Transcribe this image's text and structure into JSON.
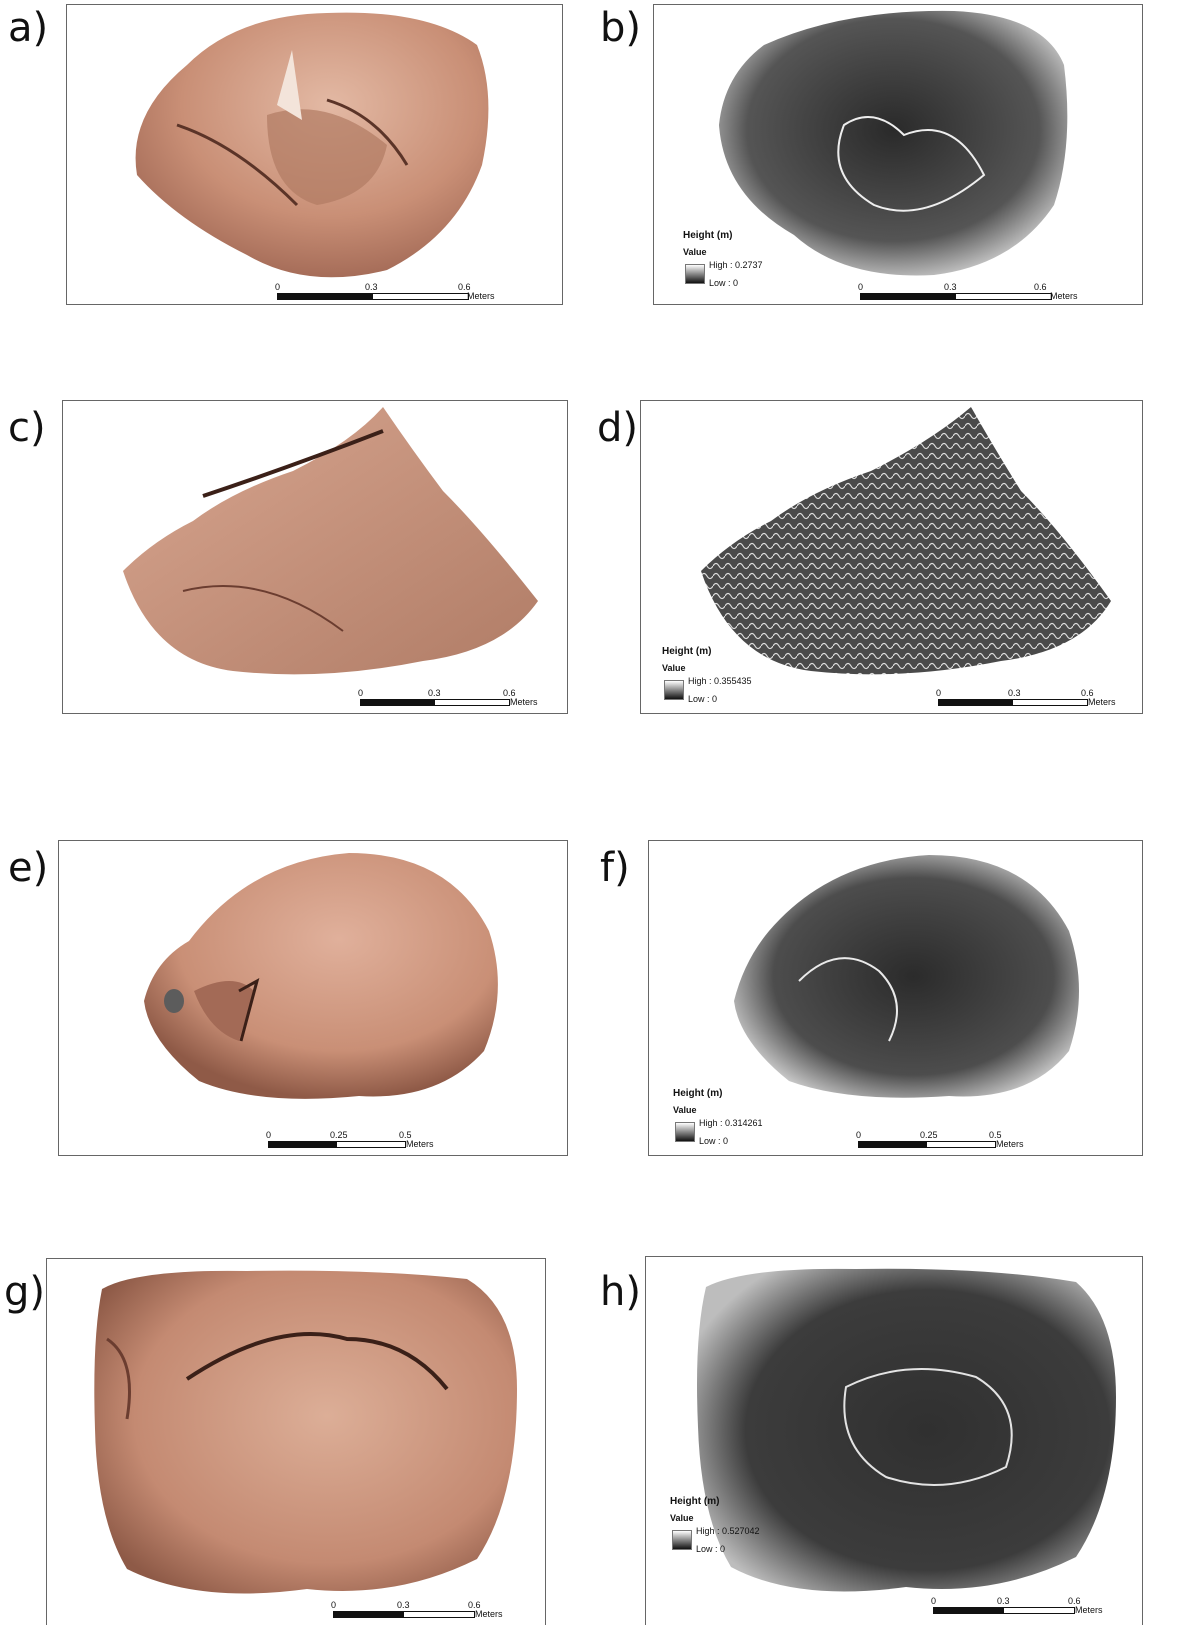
{
  "panels": [
    {
      "label": "a)",
      "type": "photo",
      "scale": {
        "ticks": [
          "0",
          "0.3",
          "0.6"
        ],
        "unit": "Meters"
      }
    },
    {
      "label": "b)",
      "type": "height",
      "legend": {
        "title": "Height (m)",
        "value": "Value",
        "high": "High : 0.2737",
        "low": "Low : 0"
      },
      "scale": {
        "ticks": [
          "0",
          "0.3",
          "0.6"
        ],
        "unit": "Meters"
      }
    },
    {
      "label": "c)",
      "type": "photo",
      "scale": {
        "ticks": [
          "0",
          "0.3",
          "0.6"
        ],
        "unit": "Meters"
      }
    },
    {
      "label": "d)",
      "type": "height",
      "legend": {
        "title": "Height (m)",
        "value": "Value",
        "high": "High : 0.355435",
        "low": "Low : 0"
      },
      "scale": {
        "ticks": [
          "0",
          "0.3",
          "0.6"
        ],
        "unit": "Meters"
      }
    },
    {
      "label": "e)",
      "type": "photo",
      "scale": {
        "ticks": [
          "0",
          "0.25",
          "0.5"
        ],
        "unit": "Meters"
      }
    },
    {
      "label": "f)",
      "type": "height",
      "legend": {
        "title": "Height (m)",
        "value": "Value",
        "high": "High : 0.314261",
        "low": "Low : 0"
      },
      "scale": {
        "ticks": [
          "0",
          "0.25",
          "0.5"
        ],
        "unit": "Meters"
      }
    },
    {
      "label": "g)",
      "type": "photo",
      "scale": {
        "ticks": [
          "0",
          "0.3",
          "0.6"
        ],
        "unit": "Meters"
      }
    },
    {
      "label": "h)",
      "type": "height",
      "legend": {
        "title": "Height (m)",
        "value": "Value",
        "high": "High : 0.527042",
        "low": "Low : 0"
      },
      "scale": {
        "ticks": [
          "0",
          "0.3",
          "0.6"
        ],
        "unit": "Meters"
      }
    }
  ],
  "colors": {
    "rock": "#c98f76",
    "rock_dark": "#8a5646",
    "hillshade_dark": "#222222",
    "hillshade_light": "#e8e8e8"
  }
}
